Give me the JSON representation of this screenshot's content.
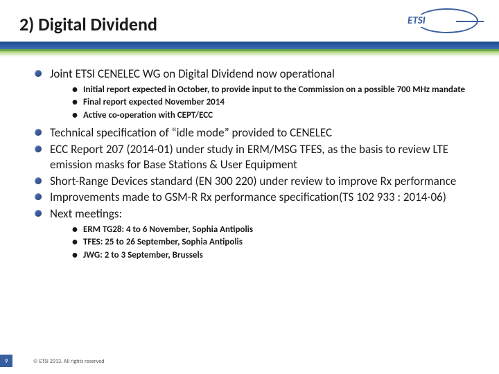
{
  "title": "2) Digital Dividend",
  "logo": {
    "text": "ETSI"
  },
  "bullets": {
    "l1": [
      {
        "text": "Joint ETSI CENELEC WG on Digital Dividend now operational",
        "sub": [
          "Initial report expected in October, to provide input to the Commission on a possible 700 MHz mandate",
          "Final report expected November 2014",
          "Active co-operation with CEPT/ECC"
        ]
      },
      {
        "text": "Technical specification of “idle mode” provided to CENELEC"
      },
      {
        "text": "ECC Report 207 (2014-01) under study in ERM/MSG TFES, as the basis to review LTE emission masks for Base Stations & User Equipment"
      },
      {
        "text": "Short-Range Devices standard (EN 300 220) under review to improve Rx performance"
      },
      {
        "text": "Improvements made to GSM-R Rx performance  specification(TS 102 933 : 2014-06)"
      },
      {
        "text": "Next meetings:",
        "sub": [
          "ERM TG28:  4 to 6 November, Sophia Antipolis",
          "TFES: 25 to 26 September, Sophia Antipolis",
          "JWG: 2 to 3 September, Brussels"
        ]
      }
    ]
  },
  "footer": {
    "page": "9",
    "copyright": "© ETSI 2013. All rights reserved"
  },
  "colors": {
    "brand_blue": "#3a5fa0",
    "text": "#1a1a1a"
  }
}
